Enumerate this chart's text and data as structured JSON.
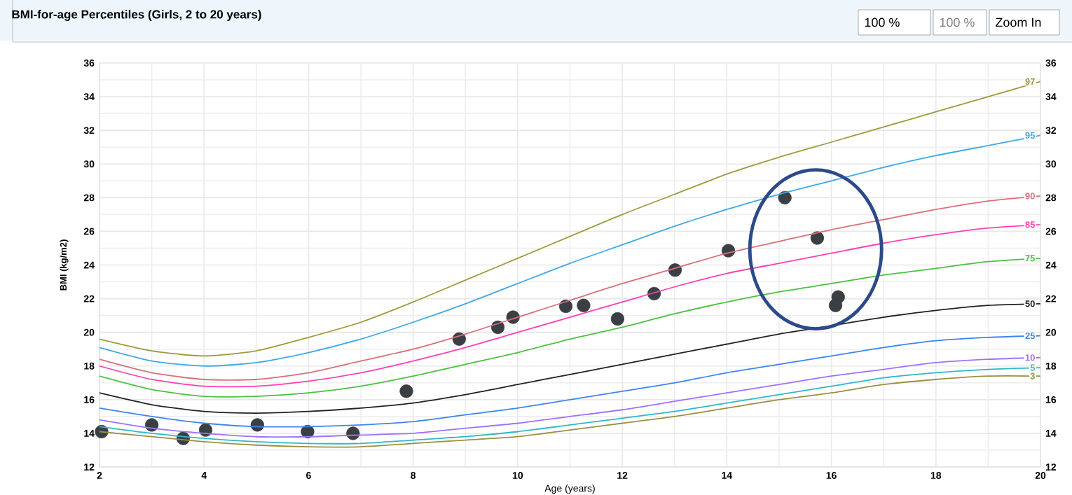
{
  "chart_data": {
    "type": "line",
    "title": "BMI-for-age Percentiles (Girls, 2 to 20 years)",
    "xlabel": "Age (years)",
    "ylabel": "BMI (kg/m2)",
    "annotations": [
      "100 %",
      "100 %",
      "Zoom In"
    ],
    "xlim": [
      2,
      20
    ],
    "xticks": [
      2,
      4,
      6,
      8,
      10,
      12,
      14,
      16,
      18,
      20
    ],
    "ylim": [
      12,
      36
    ],
    "yticks": [
      12,
      14,
      16,
      18,
      20,
      22,
      24,
      26,
      28,
      30,
      32,
      34,
      36
    ],
    "y2lim": [
      12,
      36
    ],
    "y2ticks": [
      12,
      14,
      16,
      18,
      20,
      22,
      24,
      26,
      28,
      30,
      32,
      34,
      36
    ],
    "grid": true,
    "line_style": "solid",
    "marker": "none",
    "x": [
      2,
      3,
      4,
      5,
      6,
      7,
      8,
      9,
      10,
      11,
      12,
      13,
      14,
      15,
      16,
      17,
      18,
      19,
      20
    ],
    "series": [
      {
        "type": "scatter",
        "marker": "circle",
        "color": "#3a3f44",
        "x": [
          2.04,
          3.0,
          3.6,
          4.03,
          5.02,
          5.98,
          6.85,
          7.87,
          8.88,
          9.62,
          9.91,
          10.92,
          11.26,
          11.91,
          12.61,
          13.01,
          14.03,
          15.11,
          15.73,
          16.13,
          16.08
        ],
        "values": [
          14.1,
          14.5,
          13.7,
          14.2,
          14.5,
          14.1,
          14.0,
          16.5,
          19.6,
          20.3,
          20.9,
          21.55,
          21.6,
          20.8,
          22.3,
          23.7,
          24.85,
          28.0,
          25.6,
          22.1,
          21.6
        ]
      },
      {
        "name": "97",
        "color": "#a09a3c",
        "values": [
          19.6,
          18.9,
          18.6,
          18.9,
          19.7,
          20.6,
          21.8,
          23.1,
          24.4,
          25.7,
          27.0,
          28.2,
          29.4,
          30.4,
          31.3,
          32.2,
          33.1,
          34.0,
          34.9
        ]
      },
      {
        "name": "95",
        "color": "#3fa8e8",
        "values": [
          19.1,
          18.3,
          18.0,
          18.2,
          18.8,
          19.6,
          20.6,
          21.7,
          22.9,
          24.1,
          25.2,
          26.3,
          27.3,
          28.2,
          29.0,
          29.8,
          30.5,
          31.1,
          31.7
        ]
      },
      {
        "name": "90",
        "color": "#d9707a",
        "values": [
          18.4,
          17.6,
          17.2,
          17.2,
          17.6,
          18.3,
          19.0,
          19.9,
          20.9,
          21.9,
          22.9,
          23.8,
          24.7,
          25.4,
          26.1,
          26.7,
          27.3,
          27.8,
          28.1
        ]
      },
      {
        "name": "85",
        "color": "#ff3fb4",
        "values": [
          18.0,
          17.2,
          16.8,
          16.8,
          17.1,
          17.6,
          18.3,
          19.1,
          20.0,
          20.9,
          21.8,
          22.7,
          23.5,
          24.1,
          24.7,
          25.3,
          25.8,
          26.2,
          26.4
        ]
      },
      {
        "name": "75",
        "color": "#4cc040",
        "values": [
          17.4,
          16.6,
          16.2,
          16.2,
          16.4,
          16.8,
          17.4,
          18.1,
          18.8,
          19.6,
          20.3,
          21.1,
          21.8,
          22.4,
          22.9,
          23.4,
          23.8,
          24.2,
          24.4
        ]
      },
      {
        "name": "50",
        "color": "#222222",
        "values": [
          16.4,
          15.7,
          15.3,
          15.2,
          15.3,
          15.5,
          15.8,
          16.3,
          16.9,
          17.5,
          18.1,
          18.7,
          19.3,
          19.9,
          20.4,
          20.9,
          21.3,
          21.6,
          21.7
        ]
      },
      {
        "name": "25",
        "color": "#3d85f0",
        "values": [
          15.5,
          15.0,
          14.6,
          14.4,
          14.4,
          14.5,
          14.7,
          15.1,
          15.5,
          16.0,
          16.5,
          17.0,
          17.6,
          18.1,
          18.6,
          19.1,
          19.5,
          19.7,
          19.8
        ]
      },
      {
        "name": "10",
        "color": "#a070ff",
        "values": [
          14.8,
          14.3,
          14.0,
          13.8,
          13.8,
          13.9,
          14.0,
          14.3,
          14.6,
          15.0,
          15.4,
          15.9,
          16.4,
          16.9,
          17.4,
          17.8,
          18.2,
          18.4,
          18.5
        ]
      },
      {
        "name": "5",
        "color": "#30b8c8",
        "values": [
          14.4,
          14.0,
          13.7,
          13.5,
          13.4,
          13.4,
          13.6,
          13.8,
          14.1,
          14.5,
          14.9,
          15.3,
          15.8,
          16.3,
          16.8,
          17.3,
          17.6,
          17.8,
          17.9
        ]
      },
      {
        "name": "3",
        "color": "#9a9040",
        "values": [
          14.1,
          13.8,
          13.5,
          13.3,
          13.2,
          13.2,
          13.4,
          13.6,
          13.8,
          14.2,
          14.6,
          15.0,
          15.5,
          16.0,
          16.4,
          16.9,
          17.2,
          17.4,
          17.4
        ]
      }
    ]
  }
}
